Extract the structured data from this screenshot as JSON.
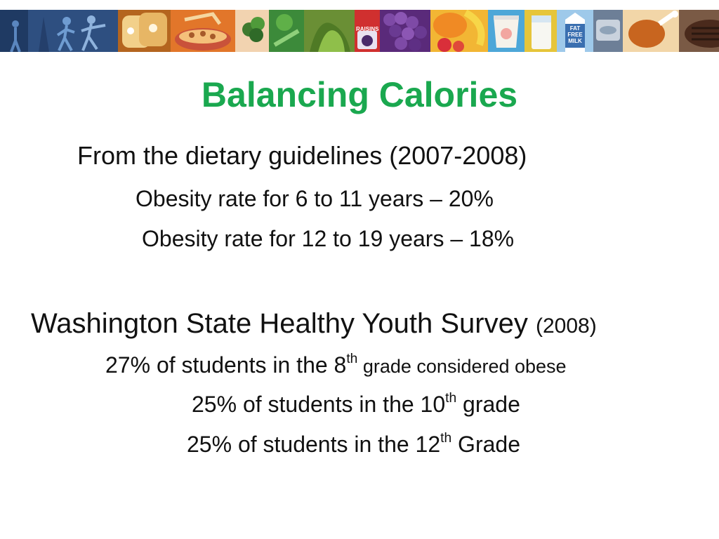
{
  "slide": {
    "title": "Balancing Calories",
    "guidelines_heading": "From the dietary guidelines (2007-2008)",
    "obesity_6_11": "Obesity rate for 6 to 11 years – 20%",
    "obesity_12_19": "Obesity rate for 12 to 19 years – 18%",
    "survey_heading": "Washington State Healthy Youth Survey",
    "survey_year": "(2008)",
    "grade8": {
      "prefix": "27% of students in the 8",
      "sup": "th",
      "suffix": " grade considered obese"
    },
    "grade10": {
      "prefix": "25% of students in the 10",
      "sup": "th",
      "suffix": " grade"
    },
    "grade12": {
      "prefix": "25% of students in the 12",
      "sup": "th",
      "suffix": " Grade"
    }
  },
  "banner": {
    "raisins_label": "RAISINS",
    "milk_label_1": "FAT",
    "milk_label_2": "FREE",
    "milk_label_3": "MILK",
    "icons": [
      "runner-icon",
      "bread-icon",
      "cereal-icon",
      "broccoli-icon",
      "raisins-icon",
      "grapes-icon",
      "fruit-icon",
      "yogurt-icon",
      "milk-glass-icon",
      "milk-carton-icon",
      "fish-can-icon",
      "drumstick-icon",
      "steak-icon"
    ],
    "colors": [
      "#2e4f80",
      "#c97a2a",
      "#e2762a",
      "#3c8a3a",
      "#6a8f35",
      "#6c3a8f",
      "#c44d2a",
      "#4da7d8",
      "#b7d6ef",
      "#3a6fb0",
      "#5a6f8a",
      "#e07a30",
      "#5a3a2a"
    ]
  }
}
